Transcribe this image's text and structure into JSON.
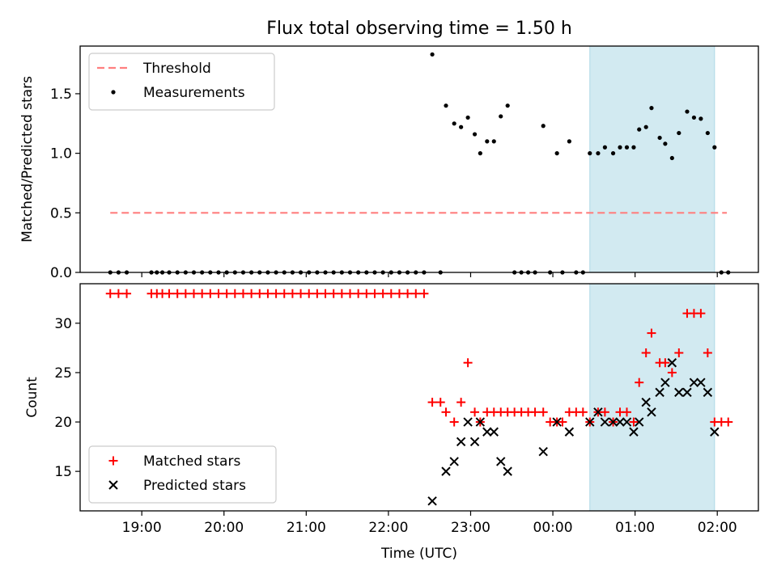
{
  "chart_data": [
    {
      "type": "scatter",
      "title": "Flux total observing time = 1.50 h",
      "xlabel": "",
      "ylabel": "Matched/Predicted stars",
      "xlim": [
        "18:15",
        "02:30"
      ],
      "ylim": [
        0,
        1.9
      ],
      "yticks": [
        0.0,
        0.5,
        1.0,
        1.5
      ],
      "ytick_labels": [
        "0.0",
        "0.5",
        "1.0",
        "1.5"
      ],
      "highlight_span": {
        "start": "00:27",
        "end": "01:58",
        "color": "#add8e6"
      },
      "legend_position": "upper left",
      "threshold": {
        "name": "Threshold",
        "y": 0.5,
        "x_start": "18:37",
        "x_end": "02:07",
        "color": "#ff7f7f",
        "style": "dashed"
      },
      "series": [
        {
          "name": "Measurements",
          "marker": "dot",
          "color": "#000000",
          "points": [
            [
              "18:37",
              0
            ],
            [
              "18:43",
              0
            ],
            [
              "18:49",
              0
            ],
            [
              "19:07",
              0
            ],
            [
              "19:11",
              0
            ],
            [
              "19:15",
              0
            ],
            [
              "19:20",
              0
            ],
            [
              "19:26",
              0
            ],
            [
              "19:32",
              0
            ],
            [
              "19:38",
              0
            ],
            [
              "19:44",
              0
            ],
            [
              "19:50",
              0
            ],
            [
              "19:56",
              0
            ],
            [
              "20:02",
              0
            ],
            [
              "20:08",
              0
            ],
            [
              "20:14",
              0
            ],
            [
              "20:20",
              0
            ],
            [
              "20:26",
              0
            ],
            [
              "20:32",
              0
            ],
            [
              "20:38",
              0
            ],
            [
              "20:44",
              0
            ],
            [
              "20:50",
              0
            ],
            [
              "20:56",
              0
            ],
            [
              "21:02",
              0
            ],
            [
              "21:08",
              0
            ],
            [
              "21:14",
              0
            ],
            [
              "21:20",
              0
            ],
            [
              "21:26",
              0
            ],
            [
              "21:32",
              0
            ],
            [
              "21:38",
              0
            ],
            [
              "21:44",
              0
            ],
            [
              "21:50",
              0
            ],
            [
              "21:56",
              0
            ],
            [
              "22:02",
              0
            ],
            [
              "22:08",
              0
            ],
            [
              "22:14",
              0
            ],
            [
              "22:20",
              0
            ],
            [
              "22:26",
              0
            ],
            [
              "22:32",
              1.83
            ],
            [
              "22:38",
              0
            ],
            [
              "22:42",
              1.4
            ],
            [
              "22:48",
              1.25
            ],
            [
              "22:53",
              1.22
            ],
            [
              "22:58",
              1.3
            ],
            [
              "23:03",
              1.16
            ],
            [
              "23:07",
              1.0
            ],
            [
              "23:12",
              1.1
            ],
            [
              "23:17",
              1.1
            ],
            [
              "23:22",
              1.31
            ],
            [
              "23:27",
              1.4
            ],
            [
              "23:32",
              0
            ],
            [
              "23:37",
              0
            ],
            [
              "23:42",
              0
            ],
            [
              "23:47",
              0
            ],
            [
              "23:53",
              1.23
            ],
            [
              "23:58",
              0
            ],
            [
              "00:03",
              1.0
            ],
            [
              "00:07",
              0
            ],
            [
              "00:12",
              1.1
            ],
            [
              "00:17",
              0
            ],
            [
              "00:22",
              0
            ],
            [
              "00:27",
              1.0
            ],
            [
              "00:33",
              1.0
            ],
            [
              "00:38",
              1.05
            ],
            [
              "00:44",
              1.0
            ],
            [
              "00:49",
              1.05
            ],
            [
              "00:54",
              1.05
            ],
            [
              "00:59",
              1.05
            ],
            [
              "01:03",
              1.2
            ],
            [
              "01:08",
              1.22
            ],
            [
              "01:12",
              1.38
            ],
            [
              "01:18",
              1.13
            ],
            [
              "01:22",
              1.08
            ],
            [
              "01:27",
              0.96
            ],
            [
              "01:32",
              1.17
            ],
            [
              "01:38",
              1.35
            ],
            [
              "01:43",
              1.3
            ],
            [
              "01:48",
              1.29
            ],
            [
              "01:53",
              1.17
            ],
            [
              "01:58",
              1.05
            ],
            [
              "02:03",
              0
            ],
            [
              "02:08",
              0
            ]
          ]
        }
      ]
    },
    {
      "type": "scatter",
      "title": "",
      "xlabel": "Time (UTC)",
      "ylabel": "Count",
      "xlim": [
        "18:15",
        "02:30"
      ],
      "ylim": [
        11,
        34
      ],
      "yticks": [
        15,
        20,
        25,
        30
      ],
      "ytick_labels": [
        "15",
        "20",
        "25",
        "30"
      ],
      "xticks": [
        "19:00",
        "20:00",
        "21:00",
        "22:00",
        "23:00",
        "00:00",
        "01:00",
        "02:00"
      ],
      "highlight_span": {
        "start": "00:27",
        "end": "01:58",
        "color": "#add8e6"
      },
      "legend_position": "lower left",
      "series": [
        {
          "name": "Matched stars",
          "marker": "plus",
          "color": "#ff0000",
          "points": [
            [
              "18:37",
              33
            ],
            [
              "18:43",
              33
            ],
            [
              "18:49",
              33
            ],
            [
              "19:07",
              33
            ],
            [
              "19:11",
              33
            ],
            [
              "19:15",
              33
            ],
            [
              "19:20",
              33
            ],
            [
              "19:26",
              33
            ],
            [
              "19:32",
              33
            ],
            [
              "19:38",
              33
            ],
            [
              "19:44",
              33
            ],
            [
              "19:50",
              33
            ],
            [
              "19:56",
              33
            ],
            [
              "20:02",
              33
            ],
            [
              "20:08",
              33
            ],
            [
              "20:14",
              33
            ],
            [
              "20:20",
              33
            ],
            [
              "20:26",
              33
            ],
            [
              "20:32",
              33
            ],
            [
              "20:38",
              33
            ],
            [
              "20:44",
              33
            ],
            [
              "20:50",
              33
            ],
            [
              "20:56",
              33
            ],
            [
              "21:02",
              33
            ],
            [
              "21:08",
              33
            ],
            [
              "21:14",
              33
            ],
            [
              "21:20",
              33
            ],
            [
              "21:26",
              33
            ],
            [
              "21:32",
              33
            ],
            [
              "21:38",
              33
            ],
            [
              "21:44",
              33
            ],
            [
              "21:50",
              33
            ],
            [
              "21:56",
              33
            ],
            [
              "22:02",
              33
            ],
            [
              "22:08",
              33
            ],
            [
              "22:14",
              33
            ],
            [
              "22:20",
              33
            ],
            [
              "22:26",
              33
            ],
            [
              "22:32",
              22
            ],
            [
              "22:38",
              22
            ],
            [
              "22:42",
              21
            ],
            [
              "22:48",
              20
            ],
            [
              "22:53",
              22
            ],
            [
              "22:58",
              26
            ],
            [
              "23:03",
              21
            ],
            [
              "23:07",
              20
            ],
            [
              "23:12",
              21
            ],
            [
              "23:17",
              21
            ],
            [
              "23:22",
              21
            ],
            [
              "23:27",
              21
            ],
            [
              "23:32",
              21
            ],
            [
              "23:37",
              21
            ],
            [
              "23:42",
              21
            ],
            [
              "23:47",
              21
            ],
            [
              "23:53",
              21
            ],
            [
              "23:58",
              20
            ],
            [
              "00:03",
              20
            ],
            [
              "00:07",
              20
            ],
            [
              "00:12",
              21
            ],
            [
              "00:17",
              21
            ],
            [
              "00:22",
              21
            ],
            [
              "00:27",
              20
            ],
            [
              "00:33",
              21
            ],
            [
              "00:38",
              21
            ],
            [
              "00:44",
              20
            ],
            [
              "00:49",
              21
            ],
            [
              "00:54",
              21
            ],
            [
              "00:59",
              20
            ],
            [
              "01:03",
              24
            ],
            [
              "01:08",
              27
            ],
            [
              "01:12",
              29
            ],
            [
              "01:18",
              26
            ],
            [
              "01:22",
              26
            ],
            [
              "01:27",
              25
            ],
            [
              "01:32",
              27
            ],
            [
              "01:38",
              31
            ],
            [
              "01:43",
              31
            ],
            [
              "01:48",
              31
            ],
            [
              "01:53",
              27
            ],
            [
              "01:58",
              20
            ],
            [
              "02:03",
              20
            ],
            [
              "02:08",
              20
            ]
          ]
        },
        {
          "name": "Predicted stars",
          "marker": "x",
          "color": "#000000",
          "points": [
            [
              "22:32",
              12
            ],
            [
              "22:42",
              15
            ],
            [
              "22:48",
              16
            ],
            [
              "22:53",
              18
            ],
            [
              "22:58",
              20
            ],
            [
              "23:03",
              18
            ],
            [
              "23:07",
              20
            ],
            [
              "23:12",
              19
            ],
            [
              "23:17",
              19
            ],
            [
              "23:22",
              16
            ],
            [
              "23:27",
              15
            ],
            [
              "23:53",
              17
            ],
            [
              "00:03",
              20
            ],
            [
              "00:12",
              19
            ],
            [
              "00:27",
              20
            ],
            [
              "00:33",
              21
            ],
            [
              "00:38",
              20
            ],
            [
              "00:44",
              20
            ],
            [
              "00:49",
              20
            ],
            [
              "00:54",
              20
            ],
            [
              "00:59",
              19
            ],
            [
              "01:03",
              20
            ],
            [
              "01:08",
              22
            ],
            [
              "01:12",
              21
            ],
            [
              "01:18",
              23
            ],
            [
              "01:22",
              24
            ],
            [
              "01:27",
              26
            ],
            [
              "01:32",
              23
            ],
            [
              "01:38",
              23
            ],
            [
              "01:43",
              24
            ],
            [
              "01:48",
              24
            ],
            [
              "01:53",
              23
            ],
            [
              "01:58",
              19
            ]
          ]
        }
      ]
    }
  ]
}
